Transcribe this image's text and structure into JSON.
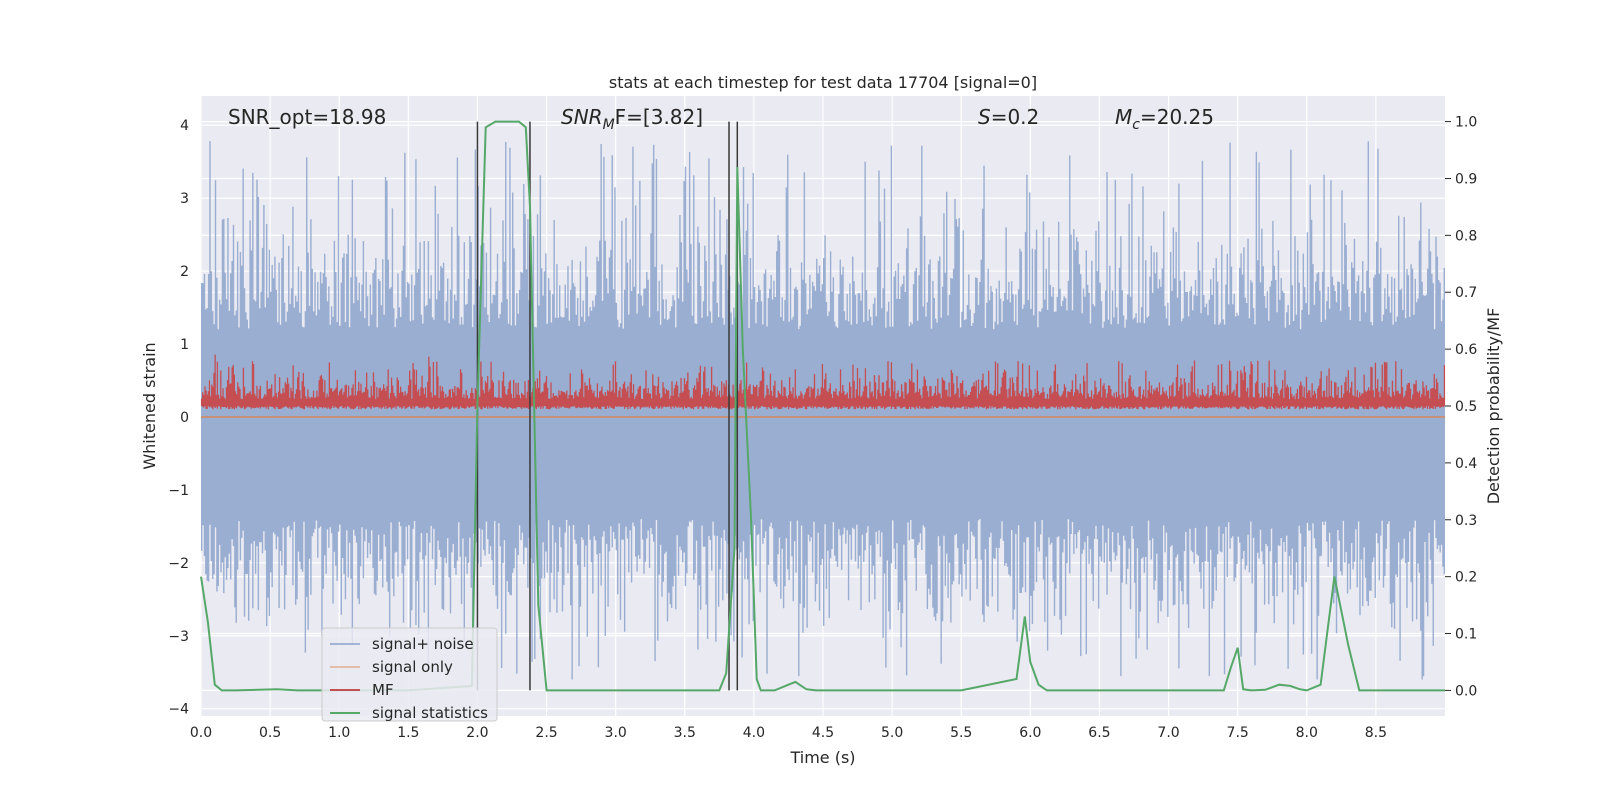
{
  "chart_data": {
    "type": "line",
    "title": "stats at each timestep for test data 17704 [signal=0]",
    "xlabel": "Time (s)",
    "ylabel_left": "Whitened strain",
    "ylabel_right": "Detection probability/MF",
    "xlim": [
      0,
      9
    ],
    "ylim_left": [
      -4.1,
      4.4
    ],
    "ylim_right": [
      -0.045,
      1.045
    ],
    "x_ticks": [
      "0.0",
      "0.5",
      "1.0",
      "1.5",
      "2.0",
      "2.5",
      "3.0",
      "3.5",
      "4.0",
      "4.5",
      "5.0",
      "5.5",
      "6.0",
      "6.5",
      "7.0",
      "7.5",
      "8.0",
      "8.5"
    ],
    "y_ticks_left": [
      "4",
      "3",
      "2",
      "1",
      "0",
      "−1",
      "−2",
      "−3",
      "−4"
    ],
    "y_ticks_right": [
      "1.0",
      "0.9",
      "0.8",
      "0.7",
      "0.6",
      "0.5",
      "0.4",
      "0.3",
      "0.2",
      "0.1",
      "0.0"
    ],
    "grid": true,
    "legend_position": "lower-left",
    "annotations": {
      "snr_opt": "SNR_opt=18.98",
      "snr_mf_prefix": "SNR",
      "snr_mf_sub": "M",
      "snr_mf_rest": "F=[3.82]",
      "s_symbol": "S",
      "s_rest": "=0.2",
      "mc_symbol": "M",
      "mc_sub": "c",
      "mc_rest": "=20.25"
    },
    "vertical_markers": [
      2.0,
      2.38,
      3.82,
      3.88
    ],
    "series": [
      {
        "name": "signal+ noise",
        "color": "#4c72b0",
        "axis": "left",
        "description_values": {
          "typical_range": [
            -2.6,
            2.8
          ],
          "max": 4.0,
          "min": -3.6
        }
      },
      {
        "name": "signal only",
        "color": "#dd8452",
        "axis": "left",
        "values_constant": 0.0
      },
      {
        "name": "MF",
        "color": "#c44e52",
        "axis": "right",
        "typical_range": [
          0.5,
          0.58
        ]
      },
      {
        "name": "signal statistics",
        "color": "#55a868",
        "axis": "right",
        "x": [
          0.0,
          0.05,
          0.1,
          0.15,
          0.25,
          0.55,
          0.7,
          1.0,
          1.5,
          1.96,
          2.0,
          2.06,
          2.13,
          2.3,
          2.35,
          2.38,
          2.44,
          2.5,
          2.6,
          3.0,
          3.5,
          3.75,
          3.8,
          3.86,
          3.88,
          3.92,
          3.98,
          4.02,
          4.05,
          4.15,
          4.25,
          4.3,
          4.38,
          4.45,
          4.55,
          5.0,
          5.5,
          5.9,
          5.96,
          6.0,
          6.06,
          6.12,
          6.5,
          7.0,
          7.4,
          7.45,
          7.5,
          7.54,
          7.6,
          7.7,
          7.8,
          7.88,
          7.95,
          8.0,
          8.1,
          8.2,
          8.3,
          8.38,
          8.5,
          8.75,
          9.0
        ],
        "y": [
          0.2,
          0.12,
          0.01,
          0.0,
          0.0,
          0.002,
          0.0,
          0.0,
          0.0,
          0.008,
          0.5,
          0.99,
          1.0,
          1.0,
          0.99,
          0.85,
          0.15,
          0.0,
          0.0,
          0.0,
          0.0,
          0.0,
          0.03,
          0.25,
          0.92,
          0.6,
          0.3,
          0.02,
          0.0,
          0.0,
          0.01,
          0.015,
          0.002,
          0.0,
          0.0,
          0.0,
          0.0,
          0.02,
          0.13,
          0.05,
          0.01,
          0.0,
          0.0,
          0.0,
          0.0,
          0.04,
          0.075,
          0.002,
          0.0,
          0.001,
          0.01,
          0.008,
          0.002,
          0.0,
          0.01,
          0.2,
          0.08,
          0.0,
          0.0,
          0.0,
          0.0
        ]
      }
    ],
    "legend": [
      "signal+ noise",
      "signal only",
      "MF",
      "signal statistics"
    ]
  }
}
